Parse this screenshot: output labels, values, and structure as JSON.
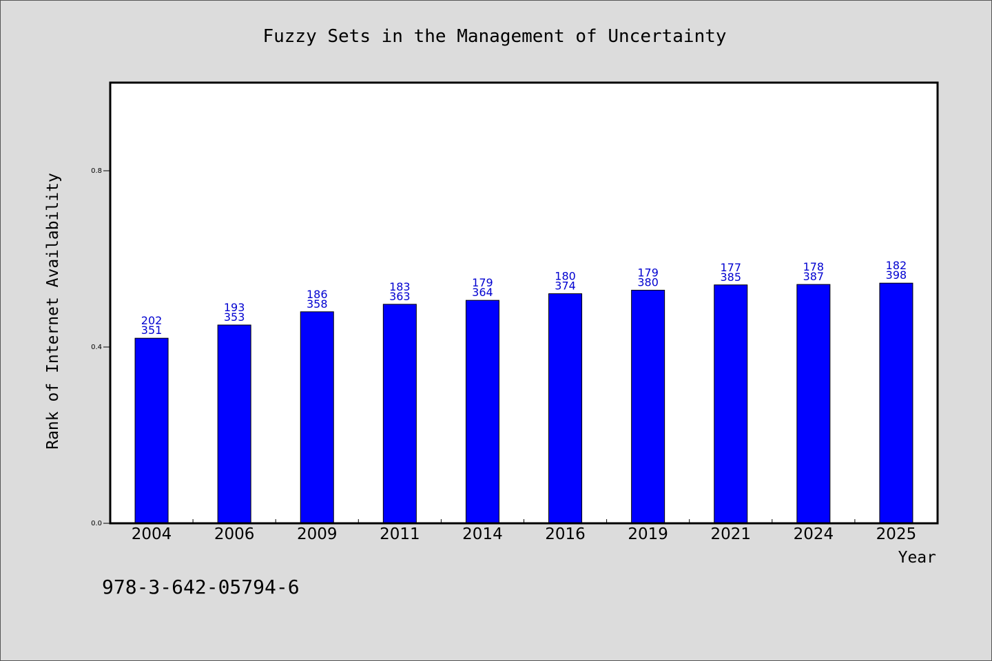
{
  "chart_data": {
    "type": "bar",
    "title": "Fuzzy Sets in the Management of Uncertainty",
    "xlabel": "Year",
    "ylabel": "Rank of Internet Availability",
    "categories": [
      "2004",
      "2006",
      "2009",
      "2011",
      "2014",
      "2016",
      "2019",
      "2021",
      "2024",
      "2025"
    ],
    "values": [
      0.42,
      0.45,
      0.48,
      0.497,
      0.506,
      0.521,
      0.529,
      0.541,
      0.542,
      0.545
    ],
    "labels_top": [
      "202",
      "193",
      "186",
      "183",
      "179",
      "180",
      "179",
      "177",
      "178",
      "182"
    ],
    "labels_bottom": [
      "351",
      "353",
      "358",
      "363",
      "364",
      "374",
      "380",
      "385",
      "387",
      "398"
    ],
    "yticks": [
      "0.0",
      "0.4",
      "0.8"
    ],
    "ylim": [
      0,
      1.0
    ],
    "bar_color": "#0000ff",
    "label_color": "#0000d0",
    "grid": false
  },
  "footer": {
    "isbn": "978-3-642-05794-6"
  }
}
